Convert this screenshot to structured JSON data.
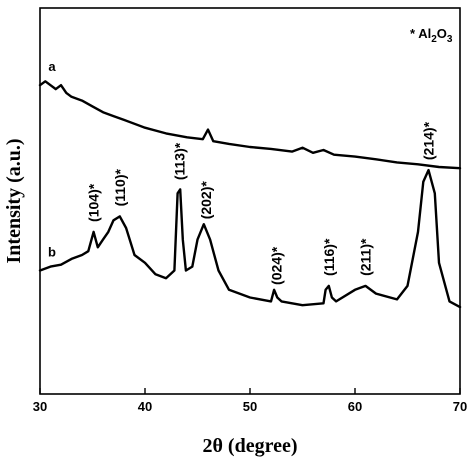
{
  "chart_data": {
    "type": "line",
    "xlabel": "2θ (degree)",
    "ylabel": "Intensity (a.u.)",
    "xlim": [
      30,
      70
    ],
    "xticks": [
      "30",
      "40",
      "50",
      "60",
      "70"
    ],
    "y_tick_labels_shown": false,
    "legend": {
      "marker": "*",
      "text": "Al",
      "sub1": "2",
      "mid": "O",
      "sub2": "3",
      "position": "top-right"
    },
    "series": [
      {
        "name": "a",
        "x": [
          30,
          30.5,
          31,
          31.5,
          32,
          32.5,
          33,
          34,
          35,
          36,
          37,
          38,
          40,
          42,
          44,
          45.5,
          46,
          46.5,
          48,
          50,
          52,
          54,
          55,
          56,
          57,
          58,
          60,
          62,
          64,
          66,
          68,
          70
        ],
        "y": [
          0.8,
          0.81,
          0.8,
          0.79,
          0.8,
          0.78,
          0.77,
          0.76,
          0.745,
          0.73,
          0.72,
          0.71,
          0.69,
          0.675,
          0.665,
          0.66,
          0.685,
          0.655,
          0.648,
          0.64,
          0.635,
          0.628,
          0.638,
          0.625,
          0.632,
          0.62,
          0.615,
          0.608,
          0.6,
          0.595,
          0.588,
          0.585
        ]
      },
      {
        "name": "b",
        "x": [
          30,
          31,
          32,
          33,
          34,
          34.6,
          35.1,
          35.5,
          36,
          36.5,
          37,
          37.6,
          38.2,
          39,
          40,
          41,
          42,
          42.8,
          43.1,
          43.35,
          43.6,
          43.9,
          44.5,
          45,
          45.6,
          46.2,
          47,
          48,
          50,
          52,
          52.3,
          52.6,
          53,
          55,
          57,
          57.2,
          57.5,
          57.8,
          58.2,
          60,
          61,
          62,
          64,
          65,
          66,
          66.5,
          67,
          67.6,
          68,
          69,
          70
        ],
        "y": [
          0.32,
          0.33,
          0.335,
          0.35,
          0.36,
          0.37,
          0.42,
          0.38,
          0.4,
          0.42,
          0.45,
          0.46,
          0.43,
          0.36,
          0.34,
          0.31,
          0.3,
          0.32,
          0.52,
          0.53,
          0.4,
          0.32,
          0.33,
          0.4,
          0.44,
          0.4,
          0.32,
          0.27,
          0.25,
          0.24,
          0.27,
          0.25,
          0.24,
          0.23,
          0.235,
          0.27,
          0.28,
          0.25,
          0.24,
          0.27,
          0.28,
          0.26,
          0.245,
          0.28,
          0.42,
          0.55,
          0.58,
          0.52,
          0.34,
          0.24,
          0.225
        ]
      }
    ],
    "curve_labels": [
      {
        "text": "a",
        "series": "a"
      },
      {
        "text": "b",
        "series": "b"
      }
    ],
    "annotations": [
      {
        "text": "(104)*",
        "x": 35.1
      },
      {
        "text": "(110)*",
        "x": 37.6
      },
      {
        "text": "(113)*",
        "x": 43.3
      },
      {
        "text": "(202)*",
        "x": 45.8
      },
      {
        "text": "(024)*",
        "x": 52.5
      },
      {
        "text": "(116)*",
        "x": 57.5
      },
      {
        "text": "(211)*",
        "x": 61.0
      },
      {
        "text": "(214)*",
        "x": 67.0
      }
    ]
  }
}
